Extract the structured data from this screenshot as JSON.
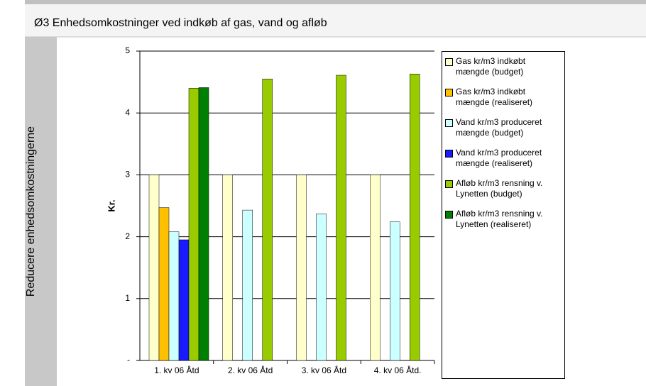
{
  "chart_data": {
    "type": "bar",
    "title": "Ø3 Enhedsomkostninger ved indkøb af gas, vand og afløb",
    "side_label": "Reducere enhedsomkostningerne",
    "y_label": "Kr.",
    "categories": [
      "1. kv 06 Åtd",
      "2. kv 06 Åtd",
      "3. kv 06 Åtd",
      "4. kv 06 Åtd."
    ],
    "series": [
      {
        "name": "Gas kr/m3 indkøbt mængde (budget)",
        "color": "#ffffcc",
        "values": [
          3,
          3,
          3,
          3
        ]
      },
      {
        "name": "Gas kr/m3 indkøbt mængde (realiseret)",
        "color": "#ffc000",
        "values": [
          2.47,
          null,
          null,
          null
        ]
      },
      {
        "name": "Vand kr/m3 produceret mængde (budget)",
        "color": "#ccffff",
        "values": [
          2.08,
          2.43,
          2.37,
          2.24
        ]
      },
      {
        "name": "Vand kr/m3 produceret mængde (realiseret)",
        "color": "#1a1aff",
        "values": [
          1.95,
          null,
          null,
          null
        ]
      },
      {
        "name": "Afløb kr/m3 rensning v. Lynetten (budget)",
        "color": "#99cc00",
        "values": [
          4.4,
          4.55,
          4.61,
          4.63
        ]
      },
      {
        "name": "Afløb kr/m3 rensning v. Lynetten (realiseret)",
        "color": "#008000",
        "values": [
          4.41,
          null,
          null,
          null
        ]
      }
    ],
    "ylim": [
      0,
      5
    ],
    "yticks": [
      {
        "value": 0,
        "label": "-"
      },
      1,
      2,
      3,
      4,
      5
    ],
    "grid": true
  }
}
